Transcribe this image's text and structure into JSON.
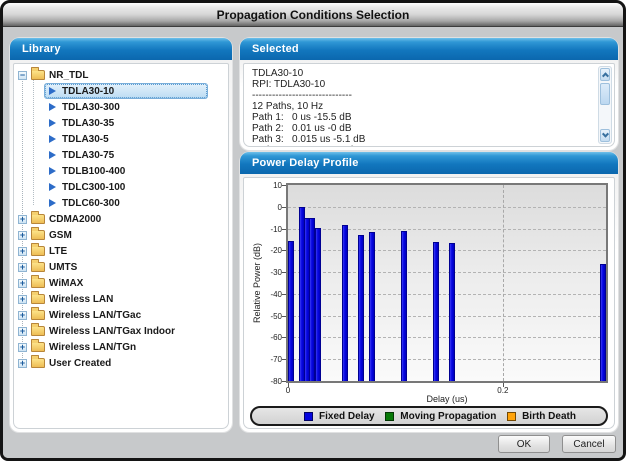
{
  "window": {
    "title": "Propagation Conditions Selection"
  },
  "library": {
    "header": "Library",
    "icons": {
      "expanded": "−",
      "collapsed": "+"
    },
    "tree": [
      {
        "label": "NR_TDL",
        "type": "folder",
        "expanded": true,
        "children": [
          {
            "label": "TDLA30-10",
            "selected": true
          },
          {
            "label": "TDLA30-300"
          },
          {
            "label": "TDLA30-35"
          },
          {
            "label": "TDLA30-5"
          },
          {
            "label": "TDLA30-75"
          },
          {
            "label": "TDLB100-400"
          },
          {
            "label": "TDLC300-100"
          },
          {
            "label": "TDLC60-300"
          }
        ]
      },
      {
        "label": "CDMA2000",
        "type": "folder",
        "expanded": false
      },
      {
        "label": "GSM",
        "type": "folder",
        "expanded": false
      },
      {
        "label": "LTE",
        "type": "folder",
        "expanded": false
      },
      {
        "label": "UMTS",
        "type": "folder",
        "expanded": false
      },
      {
        "label": "WiMAX",
        "type": "folder",
        "expanded": false
      },
      {
        "label": "Wireless LAN",
        "type": "folder",
        "expanded": false
      },
      {
        "label": "Wireless LAN/TGac",
        "type": "folder",
        "expanded": false
      },
      {
        "label": "Wireless LAN/TGax Indoor",
        "type": "folder",
        "expanded": false
      },
      {
        "label": "Wireless LAN/TGn",
        "type": "folder",
        "expanded": false
      },
      {
        "label": "User Created",
        "type": "folder",
        "expanded": false
      }
    ]
  },
  "selected_panel": {
    "header": "Selected",
    "lines": [
      "TDLA30-10",
      "RPI: TDLA30-10",
      "------------------------------",
      "12 Paths, 10 Hz",
      "Path 1:   0 us -15.5 dB",
      "Path 2:   0.01 us -0 dB",
      "Path 3:   0.015 us -5.1 dB",
      "Path 4:   0.02 us -5.1 dB"
    ]
  },
  "chart_panel": {
    "header": "Power Delay Profile"
  },
  "chart_data": {
    "type": "bar",
    "title": "Power Delay Profile",
    "xlabel": "Delay (us)",
    "ylabel": "Relative Power (dB)",
    "xlim": [
      0,
      0.296
    ],
    "ylim": [
      -80,
      10
    ],
    "yticks": [
      10,
      0,
      -10,
      -20,
      -30,
      -40,
      -50,
      -60,
      -70,
      -80
    ],
    "xticks": [
      0,
      0.2
    ],
    "grid": "dashed",
    "bar_color": "#0707e4",
    "points": [
      {
        "delay_us": 0.0,
        "power_db": -15.5
      },
      {
        "delay_us": 0.01,
        "power_db": 0.0
      },
      {
        "delay_us": 0.015,
        "power_db": -5.1
      },
      {
        "delay_us": 0.02,
        "power_db": -5.1
      },
      {
        "delay_us": 0.025,
        "power_db": -9.6
      },
      {
        "delay_us": 0.05,
        "power_db": -8.2
      },
      {
        "delay_us": 0.065,
        "power_db": -13.1
      },
      {
        "delay_us": 0.075,
        "power_db": -11.5
      },
      {
        "delay_us": 0.105,
        "power_db": -11.0
      },
      {
        "delay_us": 0.135,
        "power_db": -16.2
      },
      {
        "delay_us": 0.15,
        "power_db": -16.6
      },
      {
        "delay_us": 0.29,
        "power_db": -26.2
      }
    ],
    "legend": [
      {
        "label": "Fixed Delay",
        "color": "#0404dd"
      },
      {
        "label": "Moving Propagation",
        "color": "#067806"
      },
      {
        "label": "Birth Death",
        "color": "#ffa30a"
      }
    ],
    "legend_position": "bottom"
  },
  "footer": {
    "ok": "OK",
    "cancel": "Cancel"
  },
  "colors": {
    "panel_header_blue": "#1277be",
    "dialog_bg": "#c7c9cb",
    "selection_fill": "#bcdcf3"
  }
}
